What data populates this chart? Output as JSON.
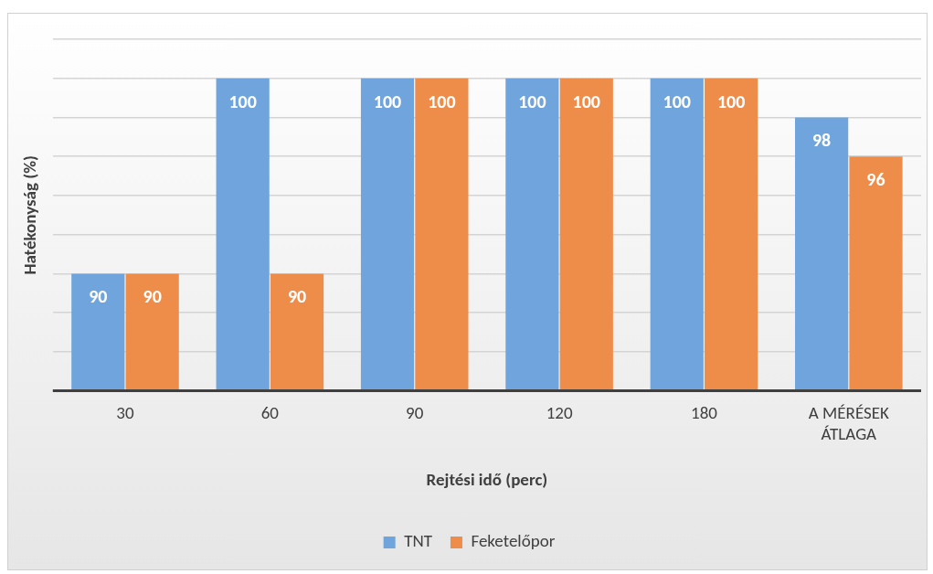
{
  "chart_data": {
    "type": "bar",
    "xlabel": "Rejtési idő (perc)",
    "ylabel": "Hatékonyság (%)",
    "categories": [
      "30",
      "60",
      "90",
      "120",
      "180",
      "A MÉRÉSEK ÁTLAGA"
    ],
    "series": [
      {
        "name": "TNT",
        "color": "#6fa5dc",
        "values": [
          90,
          100,
          100,
          100,
          100,
          98
        ]
      },
      {
        "name": "Feketelőpor",
        "color": "#ee8c4a",
        "values": [
          90,
          90,
          100,
          100,
          100,
          96
        ]
      }
    ],
    "ylim": [
      84,
      102
    ],
    "yticks": [
      {
        "value": 84,
        "label": null
      },
      {
        "value": 86,
        "label": null
      },
      {
        "value": 88,
        "label": null
      },
      {
        "value": 90,
        "label": null
      },
      {
        "value": 92,
        "label": null
      },
      {
        "value": 94,
        "label": null
      },
      {
        "value": 96,
        "label": null
      },
      {
        "value": 98,
        "label": null
      },
      {
        "value": 100,
        "label": null
      },
      {
        "value": 102,
        "label": null
      }
    ],
    "tick_labels": "x",
    "grid": "y",
    "legend": "bottom",
    "data_labels": true
  }
}
